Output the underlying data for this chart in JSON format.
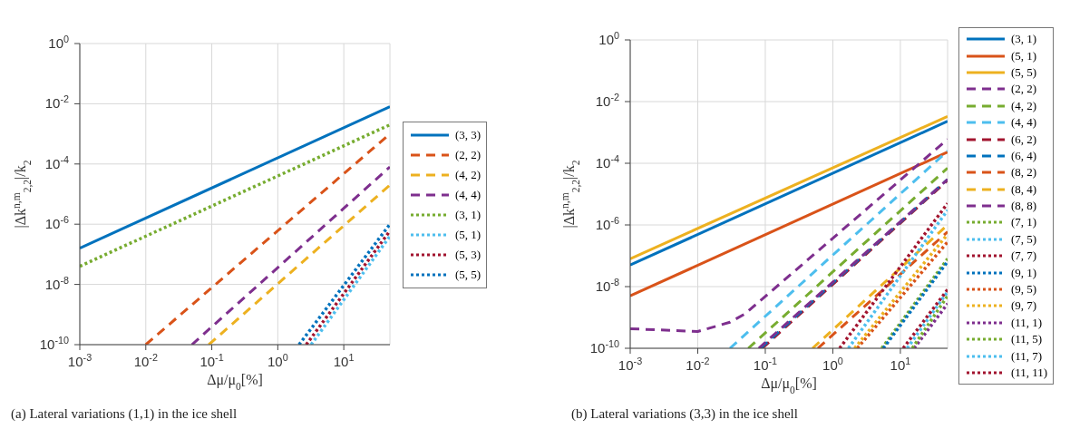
{
  "chart_data": [
    {
      "type": "line",
      "xlabel": "Δμ/μ$_{0}$[%]",
      "ylabel": "|Δk$^{n,m}$$_{2,2}$|/k$_{2}$",
      "log": "xy",
      "grid": true,
      "legend": "right",
      "xlim": [
        0.001,
        50
      ],
      "ylim": [
        1e-10,
        1
      ],
      "xticks": [
        {
          "value": 0.001,
          "label": "10$^{-3}$"
        },
        {
          "value": 0.01,
          "label": "10$^{-2}$"
        },
        {
          "value": 0.1,
          "label": "10$^{-1}$"
        },
        {
          "value": 1,
          "label": "10$^{0}$"
        },
        {
          "value": 10,
          "label": "10$^{1}$"
        }
      ],
      "yticks": [
        {
          "value": 1e-10,
          "label": "10$^{-10}$"
        },
        {
          "value": 1e-08,
          "label": "10$^{-8}$"
        },
        {
          "value": 1e-06,
          "label": "10$^{-6}$"
        },
        {
          "value": 0.0001,
          "label": "10$^{-4}$"
        },
        {
          "value": 0.01,
          "label": "10$^{-2}$"
        },
        {
          "value": 1,
          "label": "10$^{0}$"
        }
      ],
      "annotations": [
        "(a) Lateral variations (1,1) in the ice shell"
      ],
      "series": [
        {
          "name": "(3, 3)",
          "color": "#0072bd",
          "line_style": "solid",
          "x": [
            0.001,
            50
          ],
          "values": [
            1.6e-07,
            0.008
          ]
        },
        {
          "name": "(2, 2)",
          "color": "#d95319",
          "line_style": "dashed",
          "x": [
            0.01,
            50
          ],
          "values": [
            1e-10,
            0.001
          ]
        },
        {
          "name": "(4, 2)",
          "color": "#edb120",
          "line_style": "dashed",
          "x": [
            0.09,
            50
          ],
          "values": [
            1e-10,
            2e-05
          ]
        },
        {
          "name": "(4, 4)",
          "color": "#7e2f8e",
          "line_style": "dashed",
          "x": [
            0.05,
            50
          ],
          "values": [
            1e-10,
            8e-05
          ]
        },
        {
          "name": "(3, 1)",
          "color": "#77ac30",
          "line_style": "dotted",
          "x": [
            0.001,
            50
          ],
          "values": [
            4e-08,
            0.002
          ]
        },
        {
          "name": "(5, 1)",
          "color": "#4dbeee",
          "line_style": "dotted",
          "x": [
            3.2,
            50
          ],
          "values": [
            1e-10,
            4e-07
          ]
        },
        {
          "name": "(5, 3)",
          "color": "#a2142f",
          "line_style": "dotted",
          "x": [
            2.7,
            50
          ],
          "values": [
            1e-10,
            6e-07
          ]
        },
        {
          "name": "(5, 5)",
          "color": "#0072bd",
          "line_style": "dotted",
          "x": [
            2.1,
            50
          ],
          "values": [
            1e-10,
            1e-06
          ]
        }
      ]
    },
    {
      "type": "line",
      "xlabel": "Δμ/μ$_{0}$[%]",
      "ylabel": "|Δk$^{n,m}$$_{2,2}$|/k$_{2}$",
      "log": "xy",
      "grid": true,
      "legend": "right",
      "xlim": [
        0.001,
        50
      ],
      "ylim": [
        1e-10,
        1
      ],
      "xticks": [
        {
          "value": 0.001,
          "label": "10$^{-3}$"
        },
        {
          "value": 0.01,
          "label": "10$^{-2}$"
        },
        {
          "value": 0.1,
          "label": "10$^{-1}$"
        },
        {
          "value": 1,
          "label": "10$^{0}$"
        },
        {
          "value": 10,
          "label": "10$^{1}$"
        }
      ],
      "yticks": [
        {
          "value": 1e-10,
          "label": "10$^{-10}$"
        },
        {
          "value": 1e-08,
          "label": "10$^{-8}$"
        },
        {
          "value": 1e-06,
          "label": "10$^{-6}$"
        },
        {
          "value": 0.0001,
          "label": "10$^{-4}$"
        },
        {
          "value": 0.01,
          "label": "10$^{-2}$"
        },
        {
          "value": 1,
          "label": "10$^{0}$"
        }
      ],
      "annotations": [
        "(b) Lateral variations (3,3) in the ice shell"
      ],
      "series": [
        {
          "name": "(3, 1)",
          "color": "#0072bd",
          "line_style": "solid",
          "x": [
            0.001,
            50
          ],
          "values": [
            5e-08,
            0.0023
          ]
        },
        {
          "name": "(5, 1)",
          "color": "#d95319",
          "line_style": "solid",
          "x": [
            0.001,
            50
          ],
          "values": [
            5e-09,
            0.00023
          ]
        },
        {
          "name": "(5, 5)",
          "color": "#edb120",
          "line_style": "solid",
          "x": [
            0.001,
            50
          ],
          "values": [
            8e-08,
            0.0033
          ]
        },
        {
          "name": "(2, 2)",
          "color": "#7e2f8e",
          "line_style": "dashed",
          "x": [
            0.001,
            0.01,
            0.03,
            0.05,
            50
          ],
          "values": [
            4.3e-10,
            3.5e-10,
            7e-10,
            1.3e-09,
            0.0006
          ]
        },
        {
          "name": "(4, 2)",
          "color": "#77ac30",
          "line_style": "dashed",
          "x": [
            0.056,
            50
          ],
          "values": [
            1e-10,
            7e-05
          ]
        },
        {
          "name": "(4, 4)",
          "color": "#4dbeee",
          "line_style": "dashed",
          "x": [
            0.03,
            50
          ],
          "values": [
            1e-10,
            0.00025
          ]
        },
        {
          "name": "(6, 2)",
          "color": "#a2142f",
          "line_style": "dashed",
          "x": [
            0.09,
            50
          ],
          "values": [
            1e-10,
            2.8e-05
          ]
        },
        {
          "name": "(6, 4)",
          "color": "#0072bd",
          "line_style": "dashed",
          "x": [
            0.085,
            50
          ],
          "values": [
            1e-10,
            3e-05
          ]
        },
        {
          "name": "(8, 2)",
          "color": "#d95319",
          "line_style": "dashed",
          "x": [
            0.6,
            50
          ],
          "values": [
            1e-10,
            6e-07
          ]
        },
        {
          "name": "(8, 4)",
          "color": "#edb120",
          "line_style": "dashed",
          "x": [
            0.5,
            50
          ],
          "values": [
            1e-10,
            1e-06
          ]
        },
        {
          "name": "(8, 8)",
          "color": "#7e2f8e",
          "line_style": "dashed",
          "x": [
            0.08,
            50
          ],
          "values": [
            1e-10,
            3e-05
          ]
        },
        {
          "name": "(7, 1)",
          "color": "#77ac30",
          "line_style": "dotted",
          "x": [
            5.3,
            50
          ],
          "values": [
            1e-10,
            8e-08
          ]
        },
        {
          "name": "(7, 5)",
          "color": "#4dbeee",
          "line_style": "dotted",
          "x": [
            1.7,
            50
          ],
          "values": [
            1e-10,
            3e-06
          ]
        },
        {
          "name": "(7, 7)",
          "color": "#a2142f",
          "line_style": "dotted",
          "x": [
            1.26,
            50
          ],
          "values": [
            1e-10,
            5e-06
          ]
        },
        {
          "name": "(9, 1)",
          "color": "#0072bd",
          "line_style": "dotted",
          "x": [
            5.6,
            50
          ],
          "values": [
            1e-10,
            6.5e-08
          ]
        },
        {
          "name": "(9, 5)",
          "color": "#d95319",
          "line_style": "dotted",
          "x": [
            2.3,
            50
          ],
          "values": [
            1e-10,
            2.8e-07
          ]
        },
        {
          "name": "(9, 7)",
          "color": "#edb120",
          "line_style": "dotted",
          "x": [
            2.1,
            50
          ],
          "values": [
            1e-10,
            5e-07
          ]
        },
        {
          "name": "(11, 1)",
          "color": "#7e2f8e",
          "line_style": "dotted",
          "x": [
            16,
            50
          ],
          "values": [
            1e-10,
            2.8e-09
          ]
        },
        {
          "name": "(11, 5)",
          "color": "#77ac30",
          "line_style": "dotted",
          "x": [
            15,
            50
          ],
          "values": [
            1e-10,
            5e-09
          ]
        },
        {
          "name": "(11, 7)",
          "color": "#4dbeee",
          "line_style": "dotted",
          "x": [
            12.6,
            50
          ],
          "values": [
            1e-10,
            6.8e-09
          ]
        },
        {
          "name": "(11, 11)",
          "color": "#a2142f",
          "line_style": "dotted",
          "x": [
            11,
            50
          ],
          "values": [
            1e-10,
            8e-09
          ]
        }
      ]
    }
  ]
}
